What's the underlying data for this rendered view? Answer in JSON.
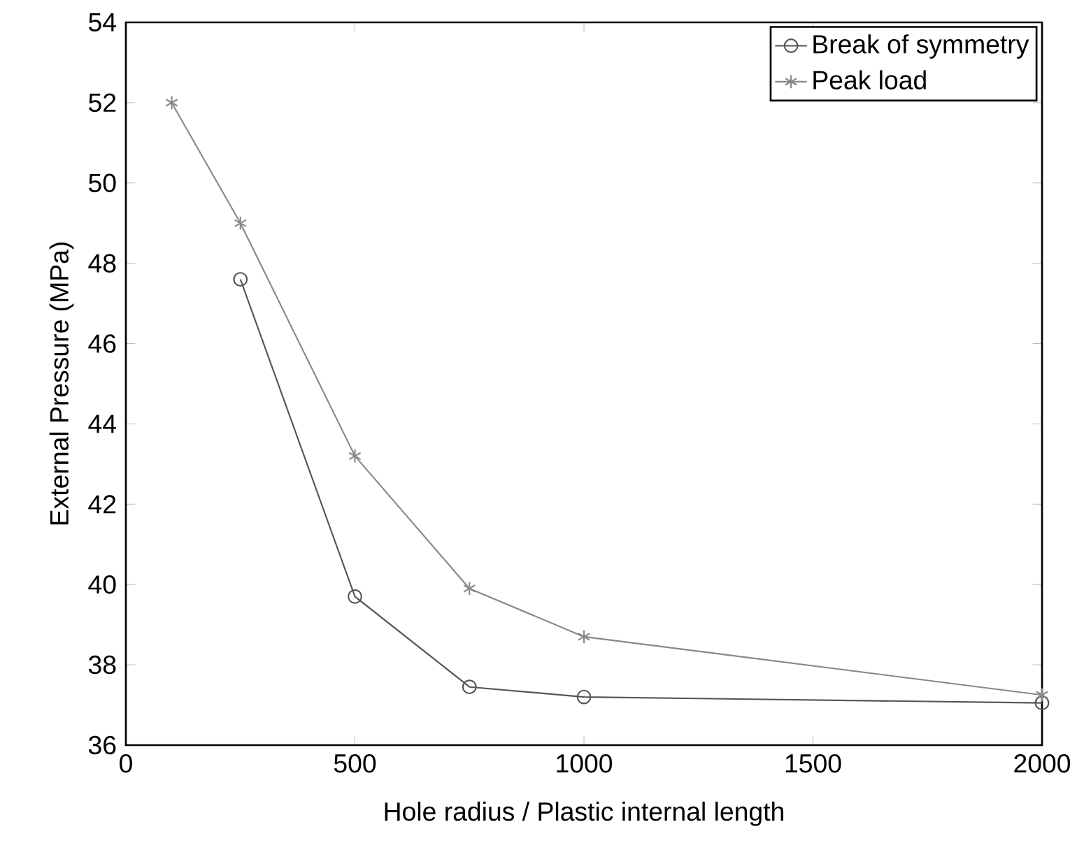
{
  "chart_data": {
    "type": "line",
    "xlabel": "Hole radius / Plastic internal length",
    "ylabel": "External Pressure (MPa)",
    "xlim": [
      0,
      2000
    ],
    "xticks": [
      0,
      500,
      1000,
      1500,
      2000
    ],
    "ylim": [
      36,
      54
    ],
    "yticks": [
      36,
      38,
      40,
      42,
      44,
      46,
      48,
      50,
      52,
      54
    ],
    "legend": "top right",
    "grid": false,
    "series": [
      {
        "name": "Break of symmetry",
        "color": "#555555",
        "marker": "circle",
        "x": [
          250,
          500,
          750,
          1000,
          2000
        ],
        "values": [
          47.6,
          39.7,
          37.45,
          37.2,
          37.05
        ]
      },
      {
        "name": "Peak load",
        "color": "#888888",
        "marker": "cross",
        "x": [
          100,
          250,
          500,
          750,
          1000,
          2000
        ],
        "values": [
          52,
          49,
          43.2,
          39.9,
          38.7,
          37.25
        ]
      }
    ]
  }
}
